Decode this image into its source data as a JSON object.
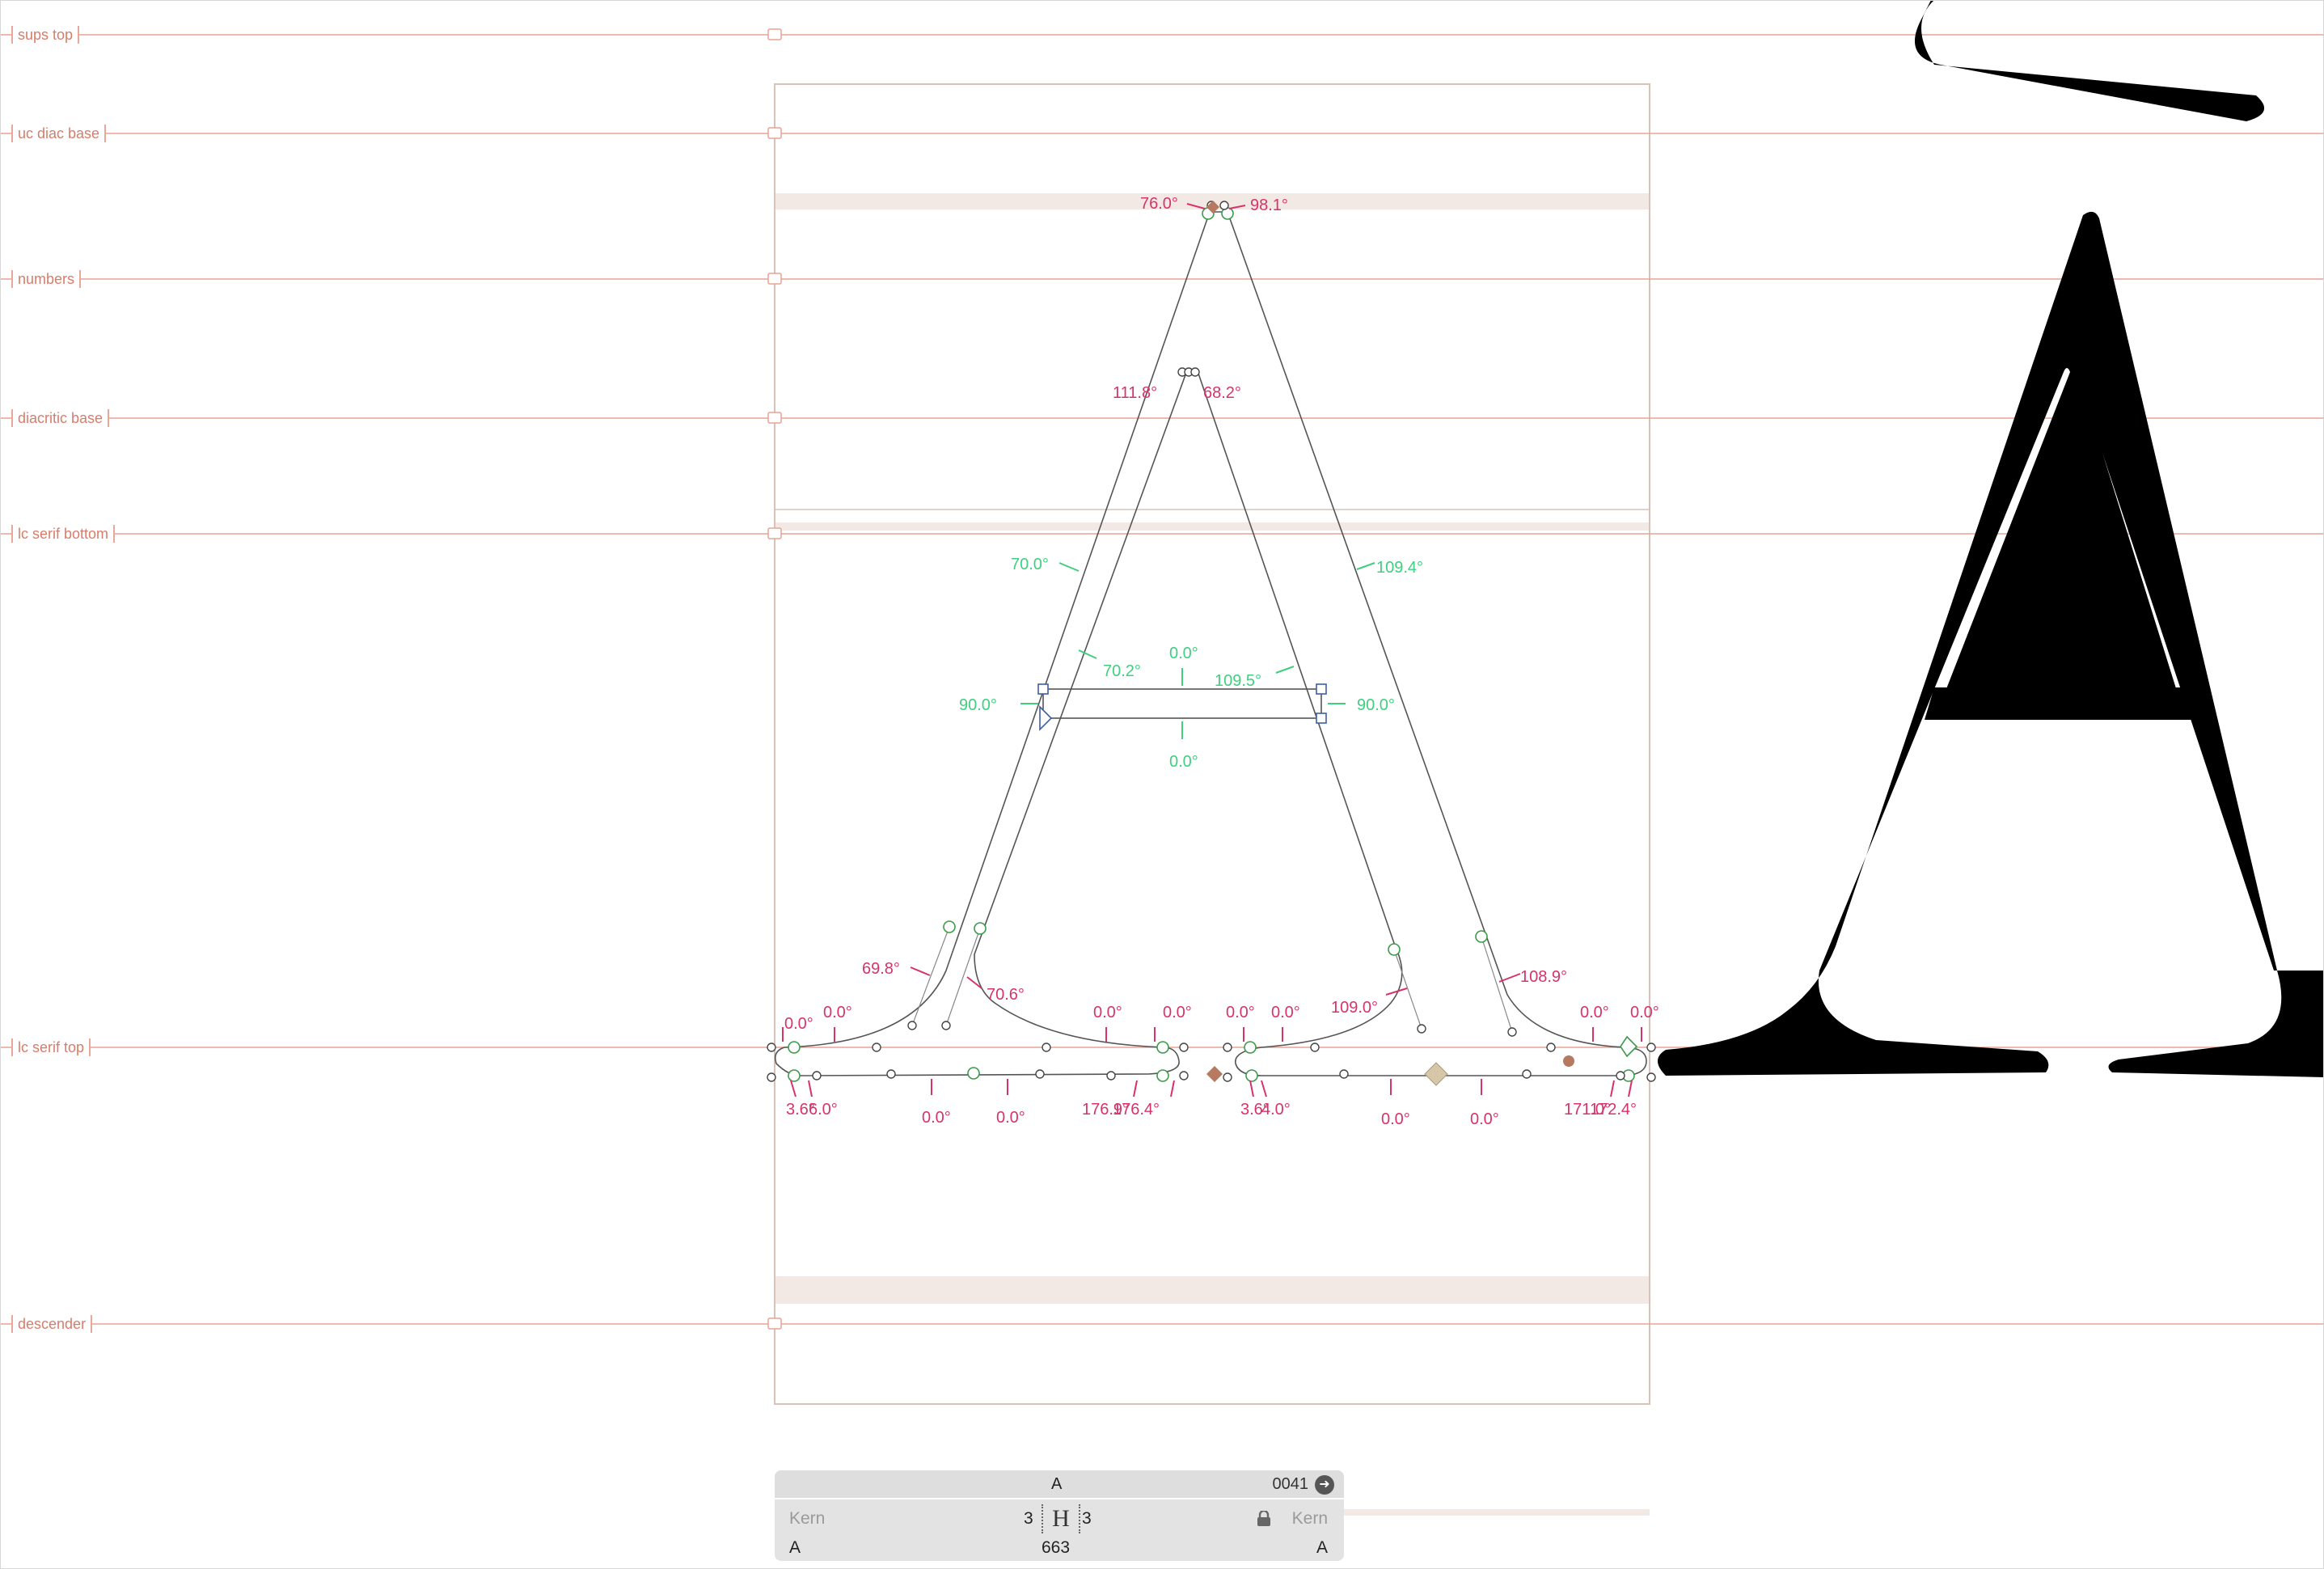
{
  "guidelines": [
    {
      "label": "sups top"
    },
    {
      "label": "uc diac base"
    },
    {
      "label": "numbers"
    },
    {
      "label": "diacritic base"
    },
    {
      "label": "lc serif bottom"
    },
    {
      "label": "lc serif top"
    },
    {
      "label": "descender"
    }
  ],
  "angle_labels": {
    "apex_left": "76.0°",
    "apex_right": "98.1°",
    "inner_apex_left": "111.8°",
    "inner_apex_right": "68.2°",
    "left_stem_outer": "70.0°",
    "right_stem_outer": "109.4°",
    "bar_left_inner": "70.2°",
    "bar_top": "0.0°",
    "bar_right_inner": "109.5°",
    "bar_left_end": "90.0°",
    "bar_right_end": "90.0°",
    "bar_bottom": "0.0°",
    "left_foot_left": "69.8°",
    "left_foot_right": "70.6°",
    "right_foot_left": "109.0°",
    "right_foot_right": "108.9°",
    "serif_top_1": "0.0°",
    "serif_top_2": "0.0°",
    "serif_top_3": "0.0°",
    "serif_top_4": "0.0°",
    "serif_top_5": "0.0°",
    "serif_top_6": "0.0°",
    "serif_top_7": "0.0°",
    "serif_top_8": "0.0°",
    "serif_bottom_1a": "3.6°",
    "serif_bottom_1b": "6.0°",
    "serif_bottom_2": "0.0°",
    "serif_bottom_3": "0.0°",
    "serif_bottom_4a": "176.9°",
    "serif_bottom_4b": "176.4°",
    "serif_bottom_5a": "3.6°",
    "serif_bottom_5b": "4.0°",
    "serif_bottom_6": "0.0°",
    "serif_bottom_7": "0.0°",
    "serif_bottom_8a": "171.0°",
    "serif_bottom_8b": "172.4°"
  },
  "info_box": {
    "glyph_name": "A",
    "unicode": "0041",
    "kern_left_label": "Kern",
    "kern_right_label": "Kern",
    "left_sidebearing": "3",
    "right_sidebearing": "3",
    "width": "663",
    "left_group": "A",
    "right_group": "A"
  },
  "colors": {
    "guideline": "#e8a294",
    "angle_red": "#d6336c",
    "angle_green": "#3fcf7f",
    "outline": "#555555",
    "node_green": "#3c9b4a",
    "handle_blue": "#3b5fa8",
    "zone": "#f3e7e0",
    "metric_box": "#d9c3b8",
    "anchor": "#b57a60"
  }
}
